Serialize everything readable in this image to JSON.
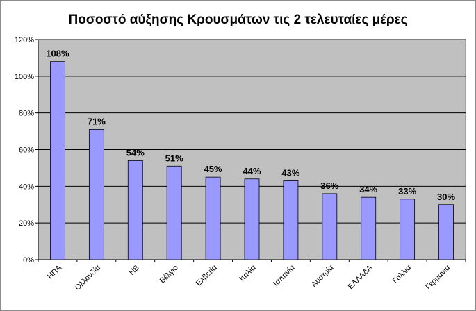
{
  "chart_data": {
    "type": "bar",
    "title": "Ποσοστό αύξησης Κρουσμάτων τις 2 τελευταίες μέρες",
    "xlabel": "",
    "ylabel": "",
    "categories": [
      "ΗΠΑ",
      "Ολλανδία",
      "ΗΒ",
      "Βέλγιο",
      "Ελβετία",
      "Ιταλία",
      "Ισπανία",
      "Αυστρία",
      "ΕΛΛΑΔΑ",
      "Γαλλία",
      "Γερμανία"
    ],
    "values": [
      108,
      71,
      54,
      51,
      45,
      44,
      43,
      36,
      34,
      33,
      30
    ],
    "data_labels": [
      "108%",
      "71%",
      "54%",
      "51%",
      "45%",
      "44%",
      "43%",
      "36%",
      "34%",
      "33%",
      "30%"
    ],
    "ylim": [
      0,
      120
    ],
    "yticks": [
      0,
      20,
      40,
      60,
      80,
      100,
      120
    ],
    "ytick_labels": [
      "0%",
      "20%",
      "40%",
      "60%",
      "80%",
      "100%",
      "120%"
    ],
    "grid": true,
    "legend": "none",
    "colors": {
      "bar_fill": "#9999ff",
      "bar_stroke": "#000000",
      "plot_background": "#c0c0c0",
      "gridline": "#000000"
    }
  }
}
